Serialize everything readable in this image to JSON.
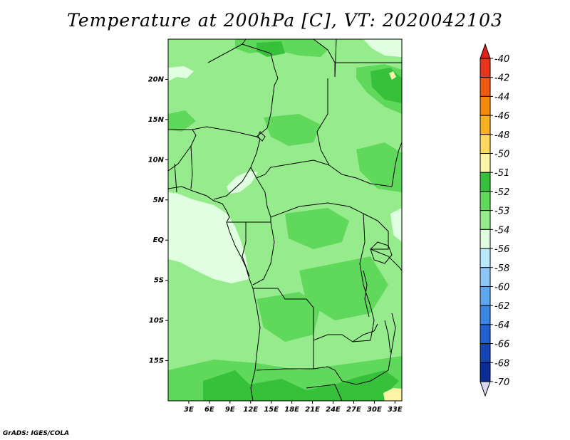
{
  "title": "Temperature at 200hPa [C], VT: 2020042103",
  "credit": "GrADS: IGES/COLA",
  "map": {
    "lon_range_E": [
      0,
      34
    ],
    "lat_range_N": [
      -20,
      25
    ],
    "lat_ticks": [
      "20N",
      "15N",
      "10N",
      "5N",
      "EQ",
      "5S",
      "10S",
      "15S"
    ],
    "lon_ticks": [
      "3E",
      "6E",
      "9E",
      "12E",
      "15E",
      "18E",
      "21E",
      "24E",
      "27E",
      "30E",
      "33E"
    ]
  },
  "colorbar": {
    "labels": [
      "-40",
      "-42",
      "-44",
      "-46",
      "-48",
      "-50",
      "-51",
      "-52",
      "-53",
      "-54",
      "-56",
      "-58",
      "-60",
      "-62",
      "-64",
      "-66",
      "-68",
      "-70"
    ],
    "colors": [
      "#e8341c",
      "#f05a10",
      "#f58a0a",
      "#f8b020",
      "#fcd860",
      "#fcf5a8",
      "#37c13a",
      "#5fd85c",
      "#96ec8c",
      "#e0ffe0",
      "#b9e8ff",
      "#8ec7f5",
      "#5ea7ef",
      "#3b85e3",
      "#2060d0",
      "#1444b5",
      "#0b2c95",
      "#000070"
    ]
  },
  "field_colors": {
    "value_-51": "#37c13a",
    "value_-52": "#5fd85c",
    "value_-53": "#96ec8c",
    "value_-54": "#e0ffe0",
    "value_-50": "#fcf5a8",
    "value_-56": "#b9e8ff"
  }
}
